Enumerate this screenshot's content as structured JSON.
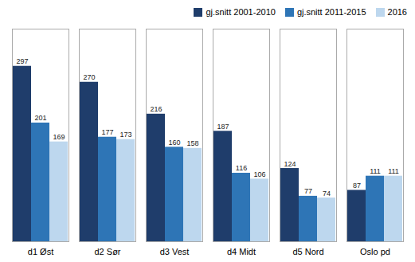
{
  "chart_data": {
    "type": "bar",
    "categories": [
      "d1 Øst",
      "d2 Sør",
      "d3 Vest",
      "d4 Midt",
      "d5 Nord",
      "Oslo pd"
    ],
    "series": [
      {
        "name": "gj.snitt 2001-2010",
        "color": "#1F3D6B",
        "values": [
          297,
          270,
          216,
          187,
          124,
          87
        ]
      },
      {
        "name": "gj.snitt 2011-2015",
        "color": "#2E75B6",
        "values": [
          201,
          177,
          160,
          116,
          77,
          111
        ]
      },
      {
        "name": "2016",
        "color": "#BDD7EE",
        "values": [
          169,
          173,
          158,
          106,
          74,
          111
        ]
      }
    ],
    "ylim": [
      0,
      360
    ],
    "data_labels": true,
    "tick_labels": "x",
    "legend": "upper right",
    "grid": false
  }
}
